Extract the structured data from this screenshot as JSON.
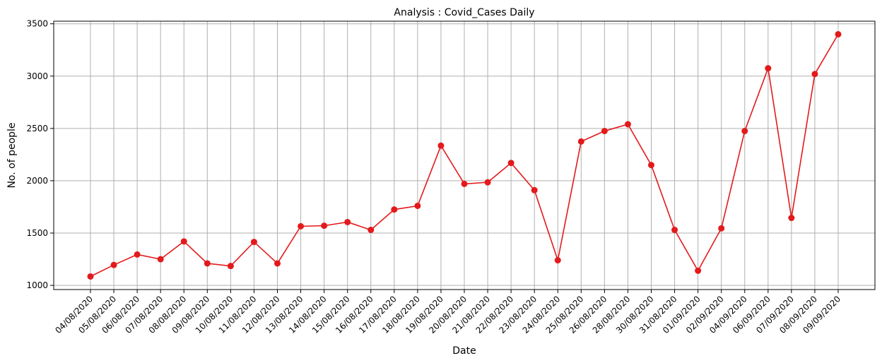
{
  "chart_data": {
    "type": "line",
    "title": "Analysis : Covid_Cases Daily",
    "xlabel": "Date",
    "ylabel": "No. of people",
    "ylim": [
      960,
      3525
    ],
    "yticks": [
      1000,
      1500,
      2000,
      2500,
      3000,
      3500
    ],
    "grid": true,
    "line_color": "#e31a1c",
    "marker": "circle",
    "categories": [
      "04/08/2020",
      "05/08/2020",
      "06/08/2020",
      "07/08/2020",
      "08/08/2020",
      "09/08/2020",
      "10/08/2020",
      "11/08/2020",
      "12/08/2020",
      "13/08/2020",
      "14/08/2020",
      "15/08/2020",
      "16/08/2020",
      "17/08/2020",
      "18/08/2020",
      "19/08/2020",
      "20/08/2020",
      "21/08/2020",
      "22/08/2020",
      "23/08/2020",
      "24/08/2020",
      "25/08/2020",
      "26/08/2020",
      "28/08/2020",
      "30/08/2020",
      "31/08/2020",
      "01/09/2020",
      "02/09/2020",
      "04/09/2020",
      "06/09/2020",
      "07/09/2020",
      "08/09/2020",
      "09/09/2020"
    ],
    "series": [
      {
        "values": [
          1085,
          1195,
          1295,
          1250,
          1420,
          1210,
          1185,
          1415,
          1210,
          1565,
          1570,
          1605,
          1530,
          1725,
          1760,
          2335,
          1970,
          1985,
          2170,
          1910,
          1240,
          2375,
          2475,
          2540,
          2150,
          1530,
          1140,
          1545,
          2475,
          3075,
          1645,
          3020,
          3400
        ]
      }
    ]
  }
}
